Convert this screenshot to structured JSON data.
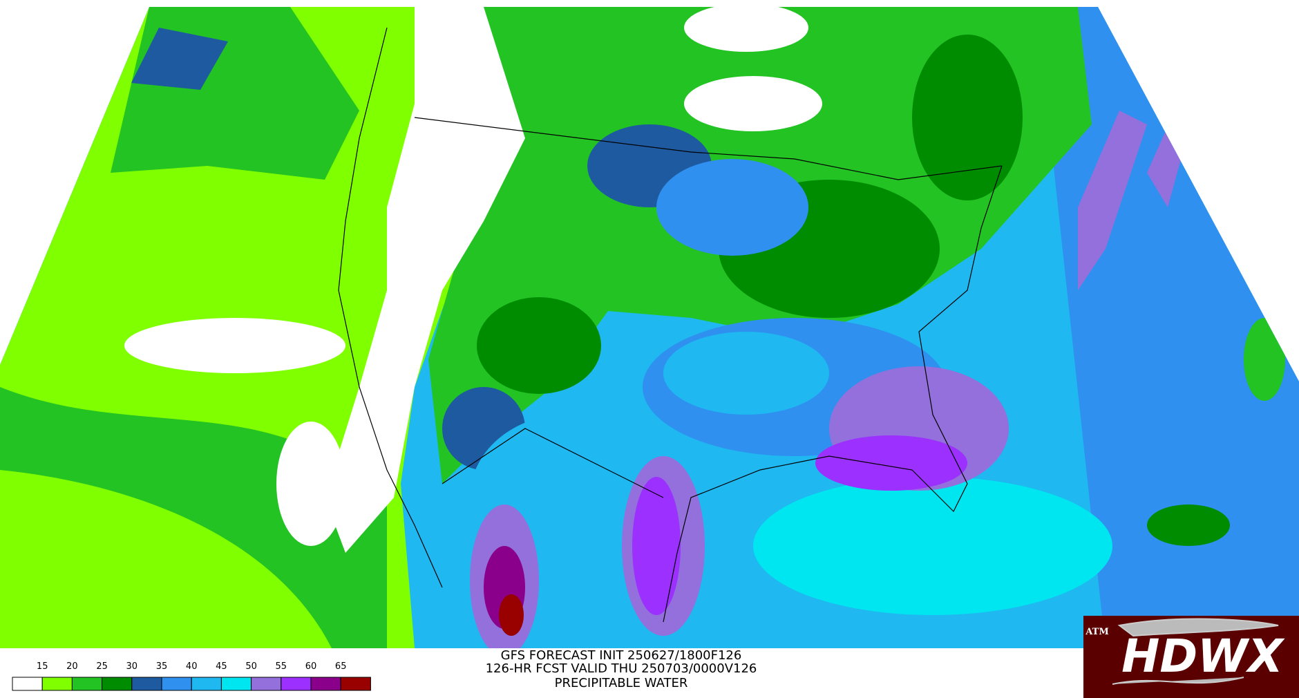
{
  "header": {
    "lines": [
      "GFS FORECAST INIT 250627/1800F126",
      "126-HR FCST VALID THU 250703/0000V126",
      "PRECIPITABLE WATER"
    ]
  },
  "legend": {
    "labels": [
      "15",
      "20",
      "25",
      "30",
      "35",
      "40",
      "45",
      "50",
      "55",
      "60",
      "65"
    ],
    "colors": [
      "#ffffff",
      "#80ff00",
      "#22c322",
      "#008c00",
      "#1e5aa0",
      "#2f90f0",
      "#1fb8f0",
      "#00e6f0",
      "#9370db",
      "#9b30ff",
      "#8b008b",
      "#990000"
    ]
  },
  "logo": {
    "badge": "ATM",
    "text": "HDWX"
  }
}
